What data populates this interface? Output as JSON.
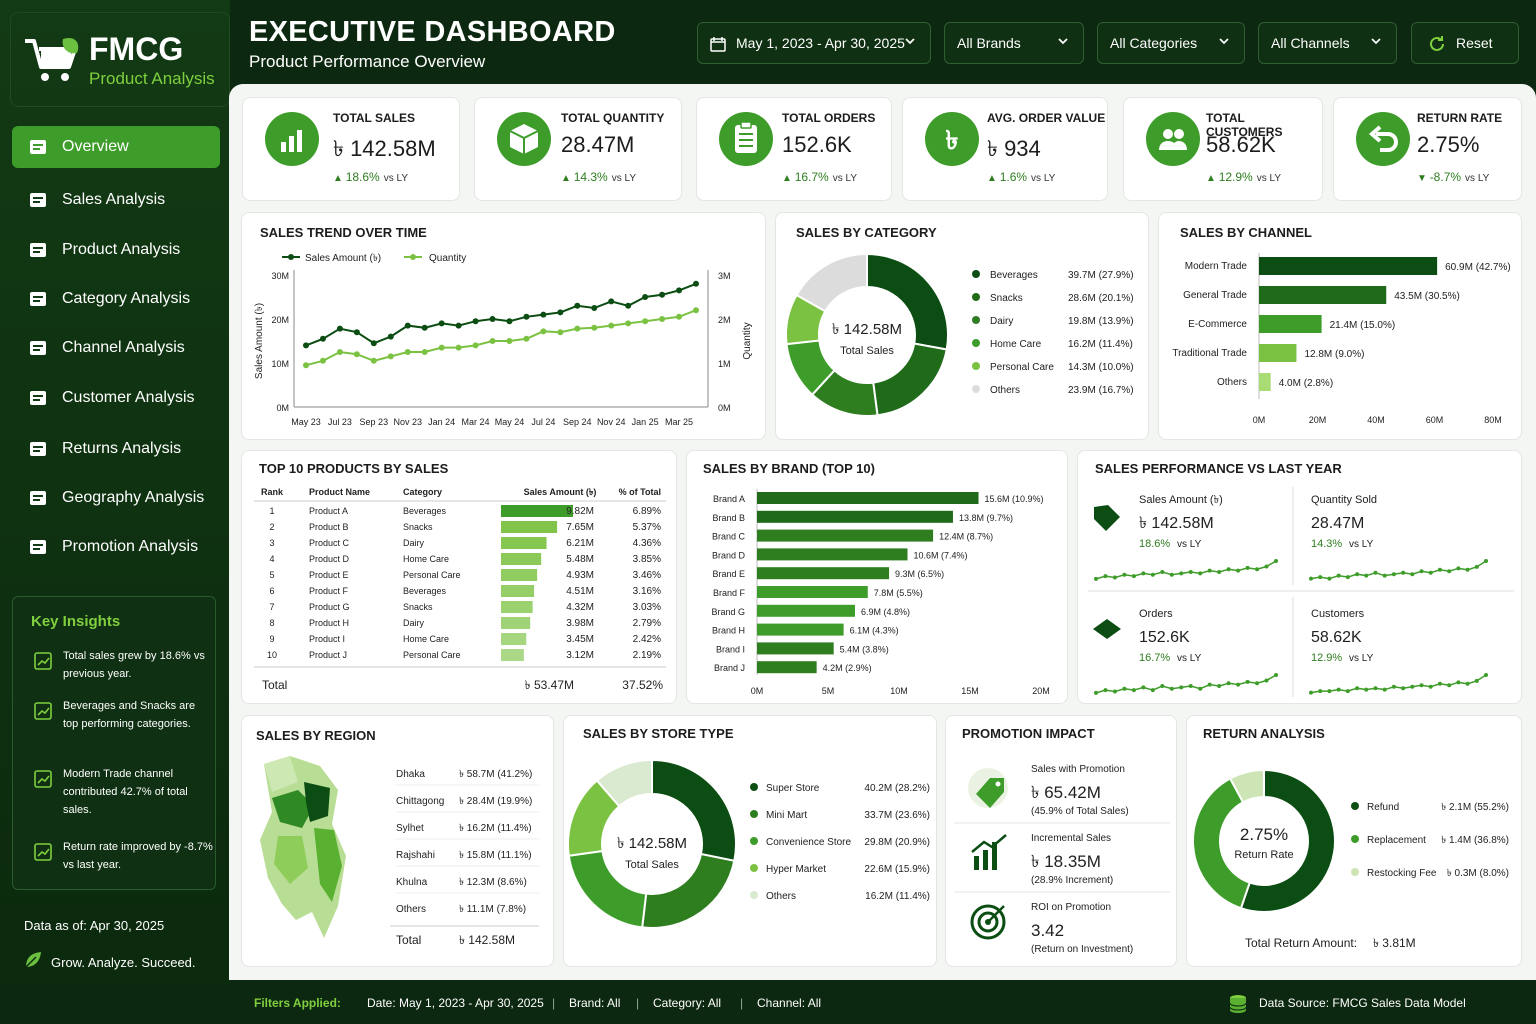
{
  "brand": {
    "name": "FMCG",
    "subtitle": "Product Analysis"
  },
  "nav": [
    {
      "label": "Overview",
      "icon": "dashboard-icon",
      "active": true
    },
    {
      "label": "Sales Analysis",
      "icon": "sales-icon"
    },
    {
      "label": "Product Analysis",
      "icon": "box-icon"
    },
    {
      "label": "Category Analysis",
      "icon": "category-icon"
    },
    {
      "label": "Channel Analysis",
      "icon": "channel-icon"
    },
    {
      "label": "Customer Analysis",
      "icon": "user-icon"
    },
    {
      "label": "Returns Analysis",
      "icon": "returns-icon"
    },
    {
      "label": "Geography Analysis",
      "icon": "location-icon"
    },
    {
      "label": "Promotion Analysis",
      "icon": "bar-chart-icon"
    }
  ],
  "insights": {
    "title": "Key Insights",
    "items": [
      {
        "text": "Total sales grew by 18.6% vs previous year.",
        "icon": "chart-up-icon"
      },
      {
        "text": "Beverages and Snacks are top performing categories.",
        "icon": "star-icon"
      },
      {
        "text": "Modern Trade channel contributed 42.7% of total sales.",
        "icon": "chart-icon"
      },
      {
        "text": "Return rate improved by -8.7% vs last year.",
        "icon": "refresh-icon"
      }
    ]
  },
  "data_as_of": "Data as of:  Apr 30, 2025",
  "tagline": "Grow. Analyze. Succeed.",
  "header": {
    "title": "EXECUTIVE DASHBOARD",
    "subtitle": "Product Performance Overview"
  },
  "filters": {
    "date": "May 1, 2023 - Apr 30, 2025",
    "brand": "All Brands",
    "category": "All Categories",
    "channel": "All Channels",
    "reset": "Reset"
  },
  "kpis": [
    {
      "label": "TOTAL SALES",
      "value": "৳ 142.58M",
      "change": "18.6%",
      "vs": "vs LY",
      "dir": "up",
      "icon": "bar-chart-icon"
    },
    {
      "label": "TOTAL QUANTITY",
      "value": "28.47M",
      "change": "14.3%",
      "vs": "vs LY",
      "dir": "up",
      "icon": "box-icon"
    },
    {
      "label": "TOTAL ORDERS",
      "value": "152.6K",
      "change": "16.7%",
      "vs": "vs LY",
      "dir": "up",
      "icon": "clipboard-icon"
    },
    {
      "label": "AVG. ORDER VALUE",
      "value": "৳ 934",
      "change": "1.6%",
      "vs": "vs LY",
      "dir": "up",
      "icon": "taka-icon"
    },
    {
      "label": "TOTAL CUSTOMERS",
      "value": "58.62K",
      "change": "12.9%",
      "vs": "vs LY",
      "dir": "up",
      "icon": "users-icon"
    },
    {
      "label": "RETURN RATE",
      "value": "2.75%",
      "change": "-8.7%",
      "vs": "vs LY",
      "dir": "down",
      "icon": "return-icon"
    }
  ],
  "trend": {
    "title": "SALES TREND OVER TIME",
    "legend_sales": "Sales Amount (৳)",
    "legend_qty": "Quantity",
    "ylabel": "Sales Amount (৳)",
    "y2label": "Quantity",
    "yticks": [
      "30M",
      "20M",
      "10M",
      "0M"
    ],
    "y2ticks": [
      "3M",
      "2M",
      "1M",
      "0M"
    ],
    "xticks": [
      "May 23",
      "Jul 23",
      "Sep 23",
      "Nov 23",
      "Jan 24",
      "Mar 24",
      "May 24",
      "Jul 24",
      "Sep 24",
      "Nov 24",
      "Jan 25",
      "Mar 25"
    ]
  },
  "chart_data": [
    {
      "type": "line",
      "title": "SALES TREND OVER TIME",
      "ylabel": "Sales Amount (৳)",
      "y2label": "Quantity",
      "ylim": [
        0,
        30
      ],
      "y2lim": [
        0,
        3
      ],
      "x": [
        "May 23",
        "Jun 23",
        "Jul 23",
        "Aug 23",
        "Sep 23",
        "Oct 23",
        "Nov 23",
        "Dec 23",
        "Jan 24",
        "Feb 24",
        "Mar 24",
        "Apr 24",
        "May 24",
        "Jun 24",
        "Jul 24",
        "Aug 24",
        "Sep 24",
        "Oct 24",
        "Nov 24",
        "Dec 24",
        "Jan 25",
        "Feb 25",
        "Mar 25",
        "Apr 25"
      ],
      "series": [
        {
          "name": "Sales Amount (৳)",
          "axis": "left",
          "values": [
            14,
            15.5,
            17.8,
            17,
            14.5,
            16,
            18.5,
            18,
            19,
            18.5,
            19.5,
            20,
            19.5,
            20.5,
            21,
            21.5,
            23,
            22.5,
            24,
            23,
            25,
            25.5,
            26.5,
            28
          ]
        },
        {
          "name": "Quantity",
          "axis": "right",
          "values": [
            0.95,
            1.05,
            1.25,
            1.2,
            1.05,
            1.15,
            1.25,
            1.25,
            1.35,
            1.35,
            1.4,
            1.5,
            1.5,
            1.55,
            1.72,
            1.7,
            1.78,
            1.8,
            1.85,
            1.9,
            1.95,
            2.0,
            2.05,
            2.2
          ]
        }
      ]
    },
    {
      "type": "pie",
      "title": "SALES BY CATEGORY",
      "center_value": "৳ 142.58M",
      "center_label": "Total Sales",
      "categories": [
        "Beverages",
        "Snacks",
        "Dairy",
        "Home Care",
        "Personal Care",
        "Others"
      ],
      "values": [
        39.7,
        28.6,
        19.8,
        16.2,
        14.3,
        23.9
      ],
      "labels": [
        "39.7M (27.9%)",
        "28.6M (20.1%)",
        "19.8M (13.9%)",
        "16.2M (11.4%)",
        "14.3M (10.0%)",
        "23.9M (16.7%)"
      ]
    },
    {
      "type": "bar",
      "orientation": "horizontal",
      "title": "SALES BY CHANNEL",
      "categories": [
        "Modern Trade",
        "General Trade",
        "E-Commerce",
        "Traditional Trade",
        "Others"
      ],
      "values": [
        60.9,
        43.5,
        21.4,
        12.8,
        4.0
      ],
      "labels": [
        "60.9M (42.7%)",
        "43.5M (30.5%)",
        "21.4M (15.0%)",
        "12.8M (9.0%)",
        "4.0M (2.8%)"
      ],
      "xlim": [
        0,
        80
      ],
      "xticks": [
        "0M",
        "20M",
        "40M",
        "60M",
        "80M"
      ]
    },
    {
      "type": "table",
      "title": "TOP 10 PRODUCTS BY SALES",
      "columns": [
        "Rank",
        "Product Name",
        "Category",
        "Sales Amount (৳)",
        "% of Total"
      ],
      "rows": [
        [
          "1",
          "Product A",
          "Beverages",
          "9.82M",
          "6.89%"
        ],
        [
          "2",
          "Product B",
          "Snacks",
          "7.65M",
          "5.37%"
        ],
        [
          "3",
          "Product C",
          "Dairy",
          "6.21M",
          "4.36%"
        ],
        [
          "4",
          "Product D",
          "Home Care",
          "5.48M",
          "3.85%"
        ],
        [
          "5",
          "Product E",
          "Personal Care",
          "4.93M",
          "3.46%"
        ],
        [
          "6",
          "Product F",
          "Beverages",
          "4.51M",
          "3.16%"
        ],
        [
          "7",
          "Product G",
          "Snacks",
          "4.32M",
          "3.03%"
        ],
        [
          "8",
          "Product H",
          "Dairy",
          "3.98M",
          "2.79%"
        ],
        [
          "9",
          "Product I",
          "Home Care",
          "3.45M",
          "2.42%"
        ],
        [
          "10",
          "Product J",
          "Personal Care",
          "3.12M",
          "2.19%"
        ]
      ],
      "values": [
        9.82,
        7.65,
        6.21,
        5.48,
        4.93,
        4.51,
        4.32,
        3.98,
        3.45,
        3.12
      ],
      "total_label": "Total",
      "total_value": "৳ 53.47M",
      "total_pct": "37.52%"
    },
    {
      "type": "bar",
      "orientation": "horizontal",
      "title": "SALES BY BRAND (TOP 10)",
      "categories": [
        "Brand A",
        "Brand B",
        "Brand C",
        "Brand D",
        "Brand E",
        "Brand F",
        "Brand G",
        "Brand H",
        "Brand I",
        "Brand J"
      ],
      "values": [
        15.6,
        13.8,
        12.4,
        10.6,
        9.3,
        7.8,
        6.9,
        6.1,
        5.4,
        4.2
      ],
      "labels": [
        "15.6M (10.9%)",
        "13.8M (9.7%)",
        "12.4M (8.7%)",
        "10.6M (7.4%)",
        "9.3M (6.5%)",
        "7.8M (5.5%)",
        "6.9M (4.8%)",
        "6.1M (4.3%)",
        "5.4M (3.8%)",
        "4.2M (2.9%)"
      ],
      "xlim": [
        0,
        20
      ],
      "xticks": [
        "0M",
        "5M",
        "10M",
        "15M",
        "20M"
      ]
    },
    {
      "type": "pie",
      "title": "SALES BY STORE TYPE",
      "center_value": "৳ 142.58M",
      "center_label": "Total Sales",
      "categories": [
        "Super Store",
        "Mini Mart",
        "Convenience Store",
        "Hyper Market",
        "Others"
      ],
      "values": [
        40.2,
        33.7,
        29.8,
        22.6,
        16.2
      ],
      "labels": [
        "40.2M (28.2%)",
        "33.7M (23.6%)",
        "29.8M (20.9%)",
        "22.6M (15.9%)",
        "16.2M (11.4%)"
      ]
    },
    {
      "type": "pie",
      "title": "RETURN ANALYSIS",
      "center_value": "2.75%",
      "center_label": "Return Rate",
      "categories": [
        "Refund",
        "Replacement",
        "Restocking Fee"
      ],
      "values": [
        2.1,
        1.4,
        0.3
      ],
      "labels": [
        "৳ 2.1M (55.2%)",
        "৳ 1.4M (36.8%)",
        "৳ 0.3M (8.0%)"
      ]
    }
  ],
  "performance": {
    "title": "SALES PERFORMANCE VS LAST YEAR",
    "items": [
      {
        "label": "Sales Amount (৳)",
        "value": "৳ 142.58M",
        "change": "18.6%",
        "vs": "vs LY",
        "icon": "tag-icon",
        "spark": [
          3,
          5,
          4,
          6,
          5,
          7,
          6,
          8,
          6,
          7,
          8,
          7,
          9,
          8,
          10,
          9,
          11,
          10,
          12,
          16
        ]
      },
      {
        "label": "Quantity Sold",
        "value": "28.47M",
        "change": "14.3%",
        "vs": "vs LY",
        "icon": "",
        "spark": [
          3,
          4,
          3,
          5,
          4,
          6,
          5,
          7,
          5,
          6,
          7,
          6,
          8,
          7,
          9,
          8,
          10,
          9,
          11,
          15
        ]
      },
      {
        "label": "Orders",
        "value": "152.6K",
        "change": "16.7%",
        "vs": "vs LY",
        "icon": "cube-icon",
        "spark": [
          3,
          5,
          4,
          6,
          5,
          7,
          5,
          8,
          6,
          7,
          8,
          6,
          9,
          8,
          10,
          9,
          11,
          10,
          12,
          16
        ]
      },
      {
        "label": "Customers",
        "value": "58.62K",
        "change": "12.9%",
        "vs": "vs LY",
        "icon": "",
        "spark": [
          3,
          4,
          4,
          5,
          4,
          6,
          5,
          6,
          5,
          7,
          6,
          7,
          8,
          7,
          9,
          8,
          10,
          9,
          11,
          15
        ]
      }
    ]
  },
  "region": {
    "title": "SALES BY REGION",
    "rows": [
      {
        "name": "Dhaka",
        "value": "৳ 58.7M (41.2%)"
      },
      {
        "name": "Chittagong",
        "value": "৳ 28.4M (19.9%)"
      },
      {
        "name": "Sylhet",
        "value": "৳ 16.2M (11.4%)"
      },
      {
        "name": "Rajshahi",
        "value": "৳ 15.8M (11.1%)"
      },
      {
        "name": "Khulna",
        "value": "৳ 12.3M (8.6%)"
      },
      {
        "name": "Others",
        "value": "৳ 11.1M (7.8%)"
      }
    ],
    "total_label": "Total",
    "total_value": "৳ 142.58M"
  },
  "promotion": {
    "title": "PROMOTION IMPACT",
    "items": [
      {
        "label": "Sales with Promotion",
        "value": "৳ 65.42M",
        "note": "(45.9% of Total Sales)",
        "icon": "promo-tag-icon"
      },
      {
        "label": "Incremental Sales",
        "value": "৳ 18.35M",
        "note": "(28.9% Increment)",
        "icon": "growth-chart-icon"
      },
      {
        "label": "ROI on Promotion",
        "value": "3.42",
        "note": "(Return on Investment)",
        "icon": "target-icon"
      }
    ]
  },
  "returns": {
    "total_label": "Total Return Amount:",
    "total_value": "৳ 3.81M"
  },
  "footer": {
    "label": "Filters Applied:",
    "date": "Date: May 1, 2023 - Apr 30, 2025",
    "brand": "Brand: All",
    "category": "Category: All",
    "channel": "Channel: All",
    "source": "Data Source: FMCG Sales Data Model"
  },
  "colors": {
    "dark": "#0b4d12",
    "mid": "#2e7d1f",
    "green": "#3e9d2a",
    "light": "#7cc242",
    "pale": "#a9dc74",
    "grey": "#dcdcdc",
    "accent": "#7fcf3e"
  }
}
